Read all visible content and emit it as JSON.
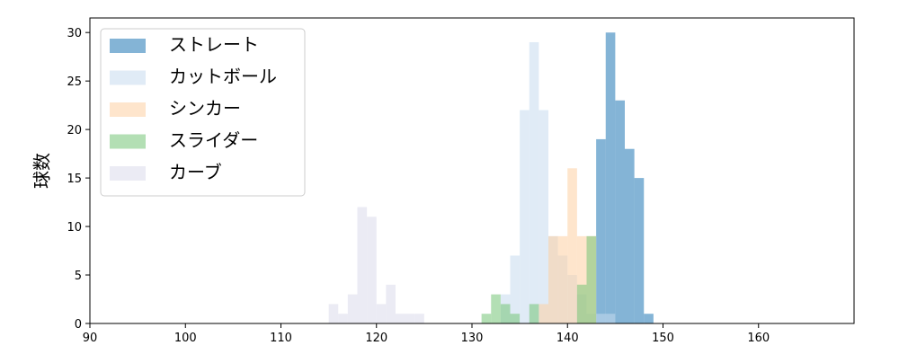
{
  "chart_data": {
    "type": "histogram",
    "ylabel": "球数",
    "xlim": [
      90,
      170
    ],
    "xticks": [
      90,
      100,
      110,
      120,
      130,
      140,
      150,
      160
    ],
    "ylim": [
      0,
      31.5
    ],
    "yticks": [
      0,
      5,
      10,
      15,
      20,
      25,
      30
    ],
    "legend": "upper left",
    "opacity": 0.55,
    "series": [
      {
        "name": "ストレート",
        "color": "#1f77b4",
        "bins": [
          143,
          144,
          145,
          146,
          147,
          148,
          149
        ],
        "values": [
          19,
          30,
          23,
          18,
          15,
          1
        ]
      },
      {
        "name": "カットボール",
        "color": "#c6dbef",
        "bins": [
          133,
          134,
          135,
          136,
          137,
          138,
          139,
          140,
          141,
          142,
          143,
          144,
          145
        ],
        "values": [
          3,
          7,
          22,
          29,
          22,
          9,
          7,
          5,
          3,
          1,
          1,
          1
        ]
      },
      {
        "name": "シンカー",
        "color": "#fdd0a2",
        "bins": [
          137,
          138,
          139,
          140,
          141,
          142,
          143
        ],
        "values": [
          2,
          9,
          9,
          16,
          9,
          9
        ]
      },
      {
        "name": "スライダー",
        "color": "#74c476",
        "bins": [
          131,
          132,
          133,
          134,
          135,
          136,
          137,
          138,
          139,
          140,
          141,
          142,
          143
        ],
        "values": [
          1,
          3,
          2,
          1,
          0,
          2,
          0,
          0,
          0,
          0,
          4,
          9
        ]
      },
      {
        "name": "カーブ",
        "color": "#dadaeb",
        "bins": [
          115,
          116,
          117,
          118,
          119,
          120,
          121,
          122,
          123,
          124,
          125
        ],
        "values": [
          2,
          1,
          3,
          12,
          11,
          2,
          4,
          1,
          1,
          1
        ]
      }
    ]
  }
}
